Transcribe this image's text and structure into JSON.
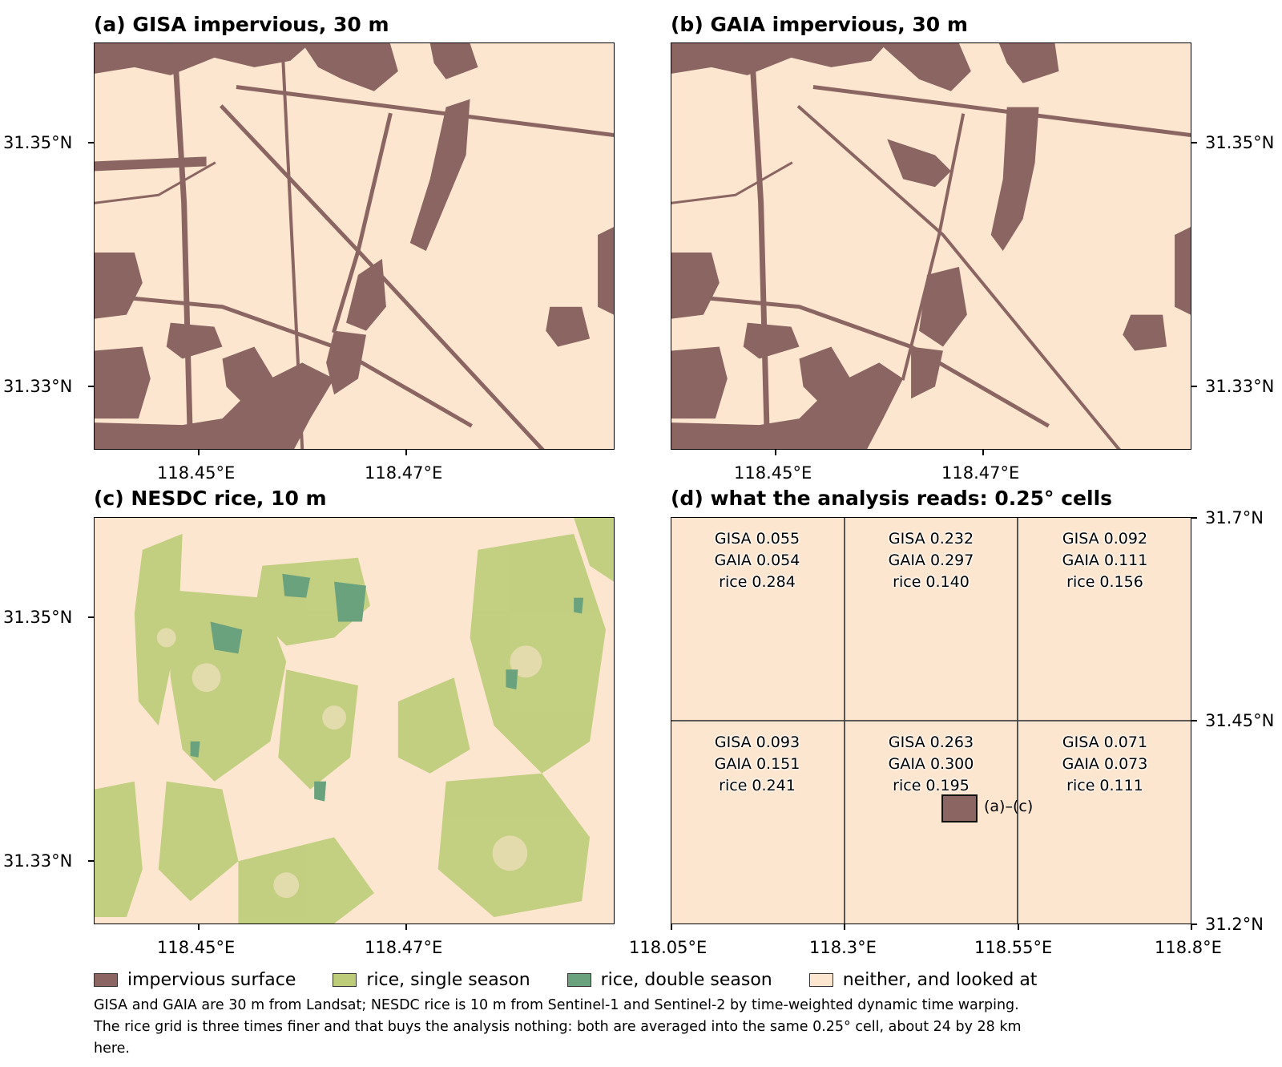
{
  "colors": {
    "background": "#fde6cf",
    "impervious": "#8a6562",
    "rice_single": "#bccc78",
    "rice_double": "#6aa27e"
  },
  "panels": {
    "a": {
      "title": "(a) GISA impervious, 30 m",
      "xticks": [
        "118.45°E",
        "118.47°E"
      ],
      "yticks": [
        "31.35°N",
        "31.33°N"
      ]
    },
    "b": {
      "title": "(b) GAIA impervious, 30 m",
      "xticks": [
        "118.45°E",
        "118.47°E"
      ],
      "yticks": [
        "31.35°N",
        "31.33°N"
      ]
    },
    "c": {
      "title": "(c) NESDC rice, 10 m",
      "xticks": [
        "118.45°E",
        "118.47°E"
      ],
      "yticks": [
        "31.35°N",
        "31.33°N"
      ]
    },
    "d": {
      "title": "(d) what the analysis reads: 0.25° cells",
      "xticks": [
        "118.05°E",
        "118.3°E",
        "118.55°E",
        "118.8°E"
      ],
      "yticks": [
        "31.7°N",
        "31.45°N",
        "31.2°N"
      ],
      "marker_label": "(a)–(c)",
      "cells": [
        {
          "gisa": "GISA 0.055",
          "gaia": "GAIA 0.054",
          "rice": "rice 0.284"
        },
        {
          "gisa": "GISA 0.232",
          "gaia": "GAIA 0.297",
          "rice": "rice 0.140"
        },
        {
          "gisa": "GISA 0.092",
          "gaia": "GAIA 0.111",
          "rice": "rice 0.156"
        },
        {
          "gisa": "GISA 0.093",
          "gaia": "GAIA 0.151",
          "rice": "rice 0.241"
        },
        {
          "gisa": "GISA 0.263",
          "gaia": "GAIA 0.300",
          "rice": "rice 0.195"
        },
        {
          "gisa": "GISA 0.071",
          "gaia": "GAIA 0.073",
          "rice": "rice 0.111"
        }
      ]
    }
  },
  "legend": {
    "impervious": "impervious surface",
    "rice_single": "rice, single season",
    "rice_double": "rice, double season",
    "neither": "neither, and looked at"
  },
  "caption": "GISA and GAIA are 30 m from Landsat; NESDC rice is 10 m from Sentinel-1 and Sentinel-2 by time-weighted dynamic time warping. The rice grid is three times finer and that buys the analysis nothing: both are averaged into the same 0.25° cell, about 24 by 28 km here."
}
